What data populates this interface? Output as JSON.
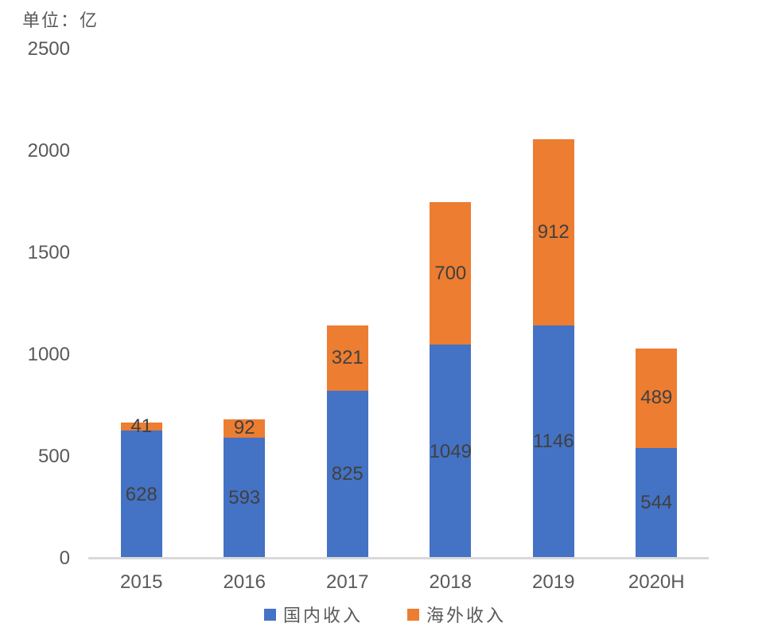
{
  "chart_data": {
    "type": "bar",
    "stacked": true,
    "title": "单位：亿",
    "categories": [
      "2015",
      "2016",
      "2017",
      "2018",
      "2019",
      "2020H"
    ],
    "series": [
      {
        "name": "国内收入",
        "color": "#4472C4",
        "values": [
          628,
          593,
          825,
          1049,
          1146,
          544
        ]
      },
      {
        "name": "海外收入",
        "color": "#ED7D31",
        "values": [
          41,
          92,
          321,
          700,
          912,
          489
        ]
      }
    ],
    "ylim": [
      0,
      2500
    ],
    "yticks": [
      0,
      500,
      1000,
      1500,
      2000,
      2500
    ],
    "grid": false,
    "data_labels": true,
    "legend_position": "bottom"
  },
  "colors": {
    "axis_line": "#D9D9D9",
    "axis_text": "#595959",
    "data_label_text": "#404040",
    "background": "#FFFFFF"
  }
}
